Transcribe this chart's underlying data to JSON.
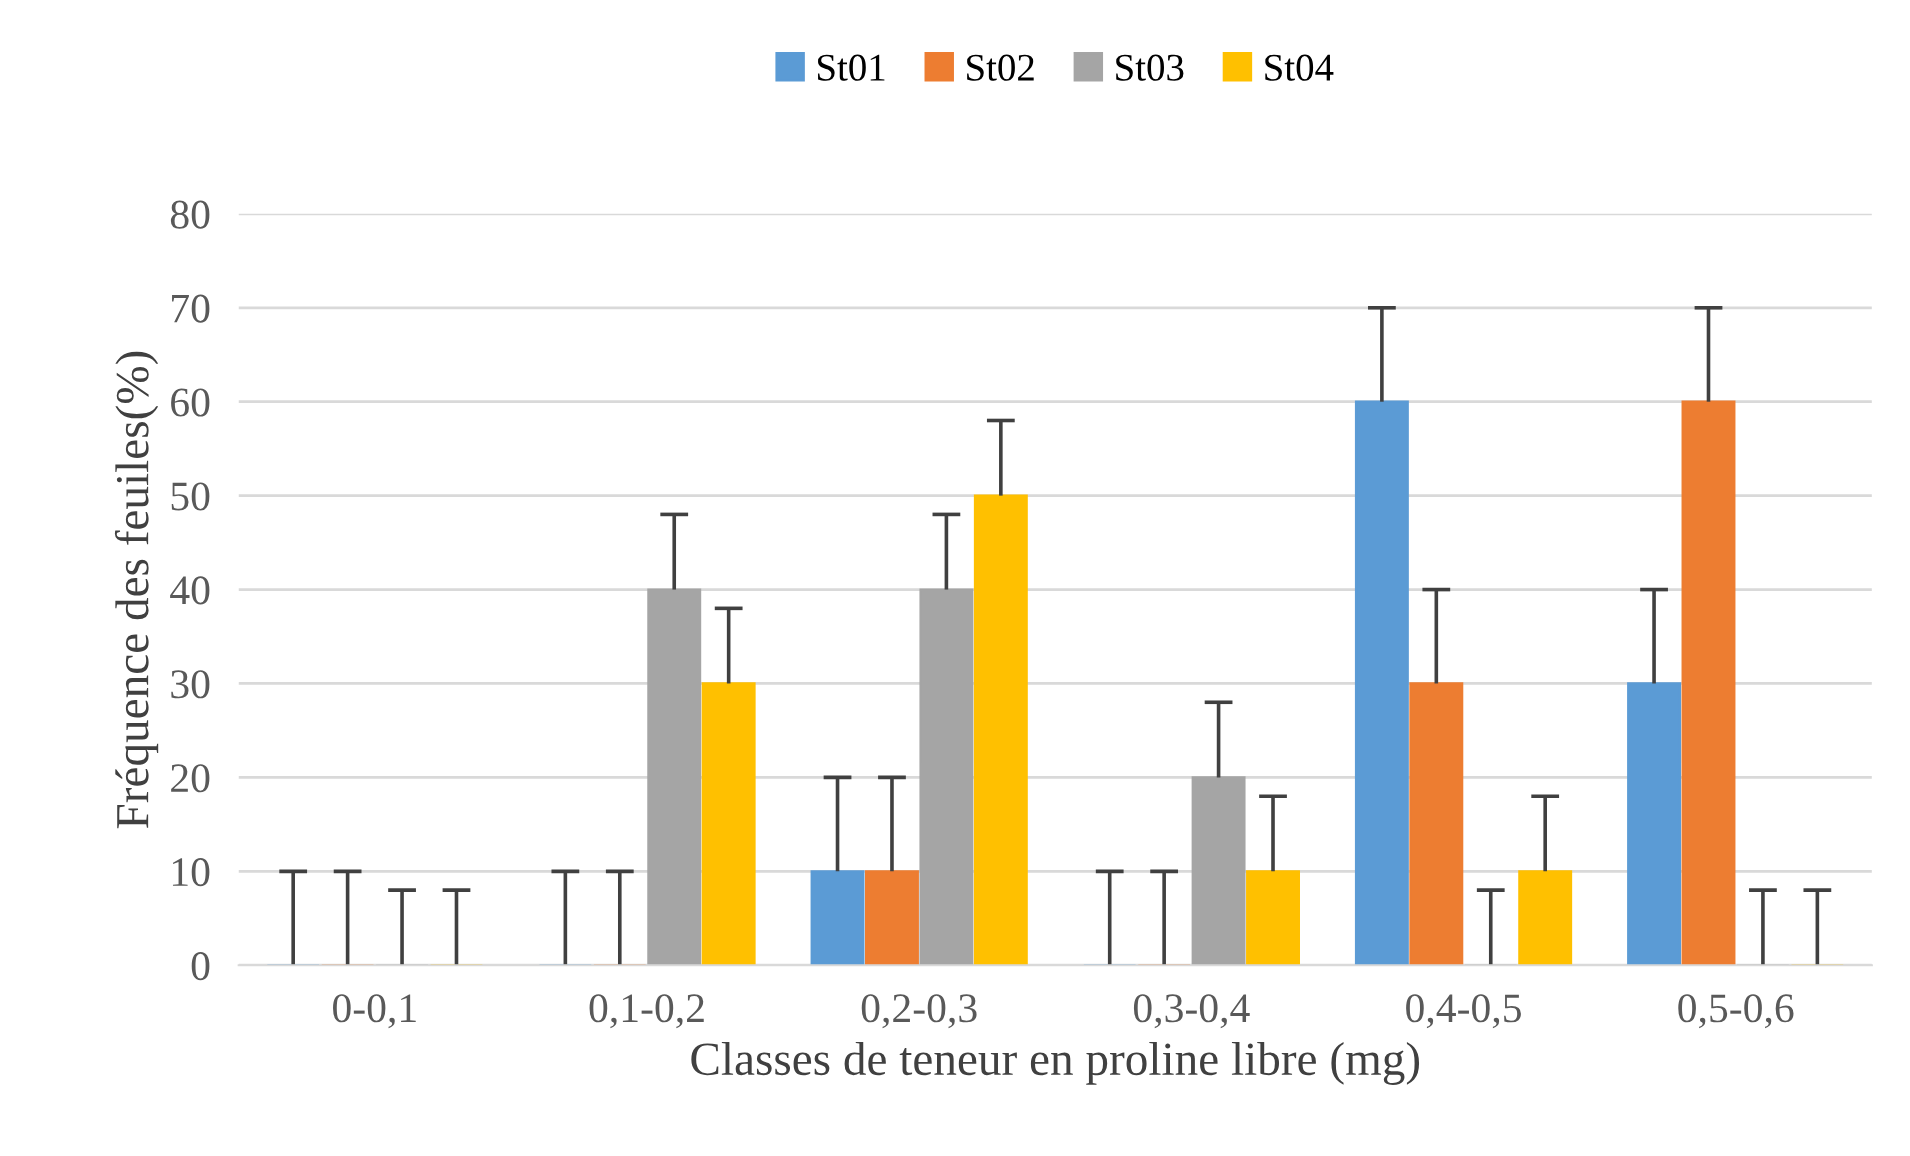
{
  "chart_data": {
    "type": "bar",
    "xlabel": "Classes de teneur en proline libre (mg)",
    "ylabel": "Fréquence des feuiles(%)",
    "categories": [
      "0-0,1",
      "0,1-0,2",
      "0,2-0,3",
      "0,3-0,4",
      "0,4-0,5",
      "0,5-0,6"
    ],
    "series": [
      {
        "name": "St01",
        "color": "#5b9bd5",
        "values": [
          0,
          0,
          10,
          0,
          60,
          30
        ],
        "errors": [
          [
            0,
            10
          ],
          [
            0,
            10
          ],
          [
            10,
            20
          ],
          [
            0,
            10
          ],
          [
            60,
            70
          ],
          [
            30,
            40
          ]
        ]
      },
      {
        "name": "St02",
        "color": "#ed7d31",
        "values": [
          0,
          0,
          10,
          0,
          30,
          60
        ],
        "errors": [
          [
            0,
            10
          ],
          [
            0,
            10
          ],
          [
            10,
            20
          ],
          [
            0,
            10
          ],
          [
            30,
            40
          ],
          [
            60,
            70
          ]
        ]
      },
      {
        "name": "St03",
        "color": "#a5a5a5",
        "values": [
          0,
          40,
          40,
          20,
          0,
          0
        ],
        "errors": [
          [
            0,
            8
          ],
          [
            40,
            48
          ],
          [
            40,
            48
          ],
          [
            20,
            28
          ],
          [
            0,
            8
          ],
          [
            0,
            8
          ]
        ]
      },
      {
        "name": "St04",
        "color": "#ffc000",
        "values": [
          0,
          30,
          50,
          10,
          10,
          0
        ],
        "errors": [
          [
            0,
            8
          ],
          [
            30,
            38
          ],
          [
            50,
            58
          ],
          [
            10,
            18
          ],
          [
            10,
            18
          ],
          [
            0,
            8
          ]
        ]
      }
    ],
    "ylim": [
      0,
      80
    ],
    "yticks": [
      0,
      10,
      20,
      30,
      40,
      50,
      60,
      70,
      80
    ],
    "grid": "y",
    "legend": "top"
  }
}
